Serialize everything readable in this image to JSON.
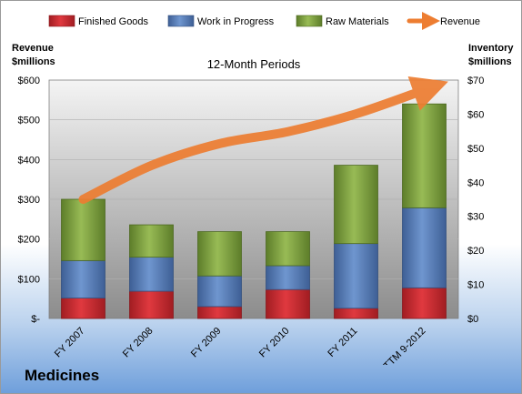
{
  "bottom_title": "Medicines",
  "chart_data": {
    "type": "bar",
    "stacked": true,
    "title": "12-Month Periods",
    "categories": [
      "FY 2007",
      "FY 2008",
      "FY 2009",
      "FY 2010",
      "FY 2011",
      "TTM 9-2012"
    ],
    "series": [
      {
        "name": "Finished Goods",
        "type": "bar",
        "axis": "right",
        "color": "#c8262c",
        "values": [
          6,
          8,
          3.5,
          8.5,
          3,
          9
        ]
      },
      {
        "name": "Work in Progress",
        "type": "bar",
        "axis": "right",
        "color": "#4f76b0",
        "values": [
          11,
          10,
          9,
          7,
          19,
          23.5
        ]
      },
      {
        "name": "Raw Materials",
        "type": "bar",
        "axis": "right",
        "color": "#7a9c3c",
        "values": [
          18,
          9.5,
          13,
          10,
          23,
          30.5
        ]
      },
      {
        "name": "Revenue",
        "type": "line",
        "axis": "left",
        "color": "#ed7d31",
        "values": [
          300,
          385,
          440,
          470,
          515,
          575
        ]
      }
    ],
    "left_axis": {
      "label_line1": "Revenue",
      "label_line2": "$millions",
      "ylim": [
        0,
        600
      ],
      "ticks": [
        "$-",
        "$100",
        "$200",
        "$300",
        "$400",
        "$500",
        "$600"
      ]
    },
    "right_axis": {
      "label_line1": "Inventory",
      "label_line2": "$millions",
      "ylim": [
        0,
        70
      ],
      "ticks": [
        "$0",
        "$10",
        "$20",
        "$30",
        "$40",
        "$50",
        "$60",
        "$70"
      ]
    },
    "legend_position": "top",
    "grid": true,
    "colors": {
      "plot_top": "#f2f2f2",
      "plot_bottom": "#8c8c8c",
      "frame_bottom": "#6f9fdb"
    }
  }
}
